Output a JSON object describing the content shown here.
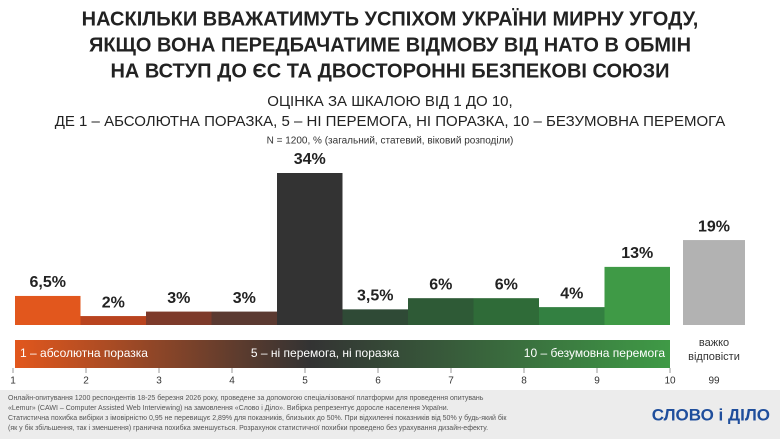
{
  "chart_data": {
    "type": "bar",
    "title": [
      "НАСКІЛЬКИ ВВАЖАТИМУТЬ УСПІХОМ УКРАЇНИ МИРНУ УГОДУ,",
      "ЯКЩО ВОНА ПЕРЕДБАЧАТИМЕ ВІДМОВУ ВІД НАТО В ОБМІН",
      "НА ВСТУП ДО ЄС ТА ДВОСТОРОННІ БЕЗПЕКОВІ СОЮЗИ"
    ],
    "subtitle": [
      "ОЦІНКА ЗА ШКАЛОЮ ВІД 1 ДО 10,",
      "ДЕ 1 – АБСОЛЮТНА ПОРАЗКА, 5 – НІ ПЕРЕМОГА, НІ ПОРАЗКА, 10 – БЕЗУМОВНА ПЕРЕМОГА"
    ],
    "note": "N = 1200, % (загальний, статевий, віковий розподіли)",
    "categories": [
      1,
      2,
      3,
      4,
      5,
      6,
      7,
      8,
      9,
      10
    ],
    "values": [
      6.5,
      2,
      3,
      3,
      34,
      3.5,
      6,
      6,
      4,
      13
    ],
    "value_labels": [
      "6,5%",
      "2%",
      "3%",
      "3%",
      "34%",
      "3,5%",
      "6%",
      "6%",
      "4%",
      "13%"
    ],
    "colors": [
      "#e2571d",
      "#b9441f",
      "#7d3b2b",
      "#5b3a31",
      "#333333",
      "#2f4a36",
      "#2e5a36",
      "#2f6b38",
      "#338041",
      "#3f9a46"
    ],
    "ylim": [
      0,
      34
    ],
    "scale_labels": [
      "1 – абсолютна поразка",
      "5 – ні перемога, ні поразка",
      "10 – безумовна перемога"
    ],
    "extra": {
      "label_lines": [
        "важко",
        "відповісти"
      ],
      "code": 99,
      "value": 19,
      "value_label": "19%",
      "color": "#b2b2b2"
    },
    "footnote": [
      "Онлайн-опитування 1200 респондентів 18-25 березня 2026 року, проведене за допомогою спеціалізованої платформи для проведення опитувань",
      "«Lemur» (CAWI – Computer Assisted Web Interviewing) на замовлення «Слово і Діло». Вибірка репрезентує доросле населення України.",
      "Статистична похибка вибірки з імовірністю 0,95 не перевищує 2,89% для показників, близьких до 50%. При відхиленні показників від 50% у будь-який бік",
      "(як у бік збільшення, так і зменшення) гранична похибка зменшується. Розрахунок статистичної похибки проведено без урахування дизайн-ефекту."
    ],
    "logo": "СЛОВО і ДІЛО"
  }
}
